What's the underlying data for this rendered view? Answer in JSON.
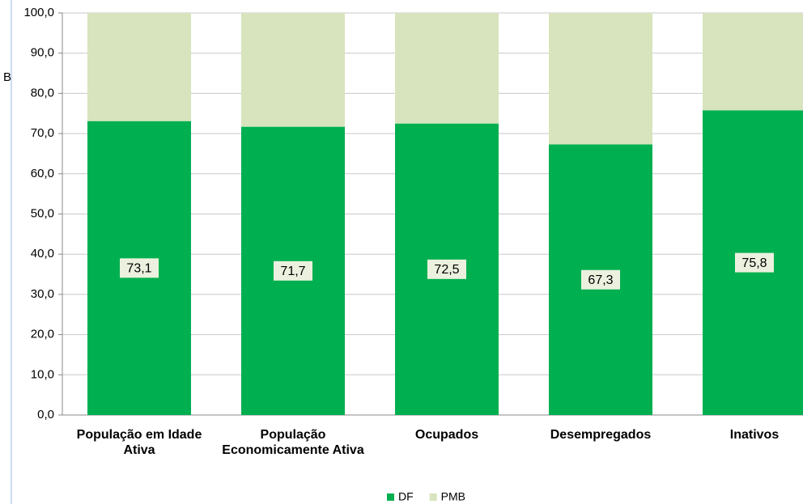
{
  "chart_data": {
    "type": "stacked_bar",
    "ylabel": "B",
    "categories": [
      "População em Idade Ativa",
      "População Economicamente Ativa",
      "Ocupados",
      "Desempregados",
      "Inativos"
    ],
    "series": [
      {
        "name": "DF",
        "color": "#00b050",
        "values": [
          73.1,
          71.7,
          72.5,
          67.3,
          75.8
        ],
        "value_labels": [
          "73,1",
          "71,7",
          "72,5",
          "67,3",
          "75,8"
        ]
      },
      {
        "name": "PMB",
        "color": "#d7e4bd",
        "values": [
          26.9,
          28.3,
          27.5,
          32.7,
          24.2
        ]
      }
    ],
    "ylim": [
      0,
      100
    ],
    "yticks": [
      {
        "value": 0,
        "label": "0,0"
      },
      {
        "value": 10,
        "label": "10,0"
      },
      {
        "value": 20,
        "label": "20,0"
      },
      {
        "value": 30,
        "label": "30,0"
      },
      {
        "value": 40,
        "label": "40,0"
      },
      {
        "value": 50,
        "label": "50,0"
      },
      {
        "value": 60,
        "label": "60,0"
      },
      {
        "value": 70,
        "label": "70,0"
      },
      {
        "value": 80,
        "label": "80,0"
      },
      {
        "value": 90,
        "label": "90,0"
      },
      {
        "value": 100,
        "label": "100,0"
      }
    ],
    "grid": true,
    "legend": "bottom"
  }
}
